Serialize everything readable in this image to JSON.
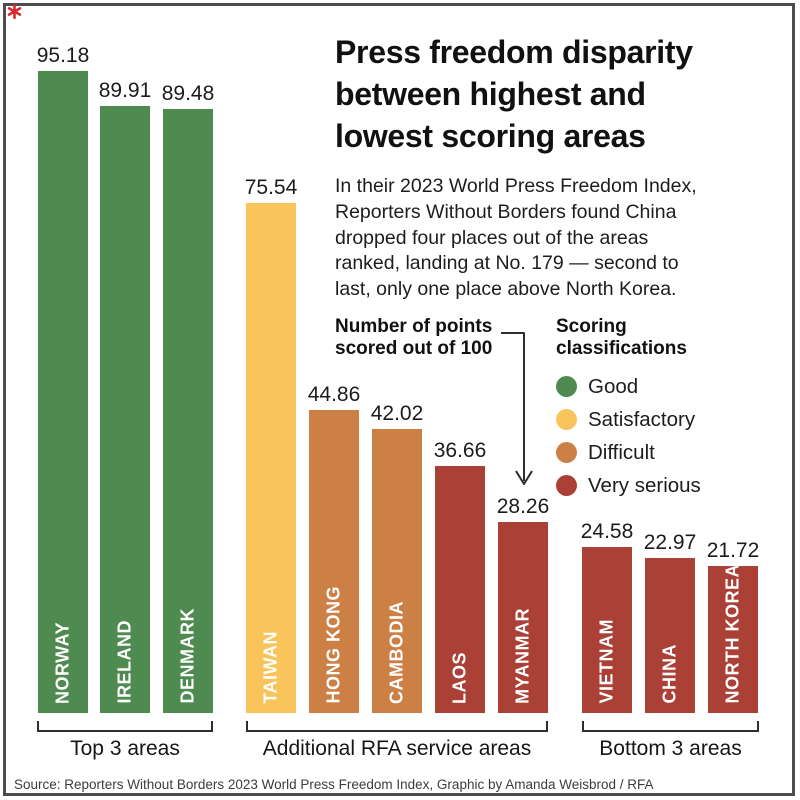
{
  "logo": {
    "color": "#d7282f"
  },
  "header": {
    "title_lines": [
      "Press freedom disparity",
      "between highest and",
      "lowest scoring areas"
    ]
  },
  "intro_lines": [
    "In their 2023 World Press Freedom Index,",
    "Reporters Without Borders found China",
    "dropped four places out of the areas",
    "ranked, landing at No. 179 — second to",
    "last, only one place above North Korea."
  ],
  "annotation": {
    "lines": [
      "Number of points",
      "scored out of 100"
    ]
  },
  "legend": {
    "title_lines": [
      "Scoring",
      "classifications"
    ],
    "items": [
      {
        "label": "Good",
        "color": "#4f8b51"
      },
      {
        "label": "Satisfactory",
        "color": "#f9c45c"
      },
      {
        "label": "Difficult",
        "color": "#cd8045"
      },
      {
        "label": "Very serious",
        "color": "#ab4136"
      }
    ]
  },
  "chart_data": {
    "type": "bar",
    "title": "Press freedom disparity between highest and lowest scoring areas",
    "ylabel": "Number of points scored out of 100",
    "ylim": [
      0,
      100
    ],
    "bars": [
      {
        "label": "NORWAY",
        "value": 95.18,
        "classification": "Good"
      },
      {
        "label": "IRELAND",
        "value": 89.91,
        "classification": "Good"
      },
      {
        "label": "DENMARK",
        "value": 89.48,
        "classification": "Good"
      },
      {
        "label": "TAIWAN",
        "value": 75.54,
        "classification": "Satisfactory"
      },
      {
        "label": "HONG KONG",
        "value": 44.86,
        "classification": "Difficult"
      },
      {
        "label": "CAMBODIA",
        "value": 42.02,
        "classification": "Difficult"
      },
      {
        "label": "LAOS",
        "value": 36.66,
        "classification": "Very serious"
      },
      {
        "label": "MYANMAR",
        "value": 28.26,
        "classification": "Very serious"
      },
      {
        "label": "VIETNAM",
        "value": 24.58,
        "classification": "Very serious"
      },
      {
        "label": "CHINA",
        "value": 22.97,
        "classification": "Very serious"
      },
      {
        "label": "NORTH KOREA",
        "value": 21.72,
        "classification": "Very serious"
      }
    ],
    "classification_colors": {
      "Good": "#4f8b51",
      "Satisfactory": "#f9c45c",
      "Difficult": "#cd8045",
      "Very serious": "#ab4136"
    },
    "groups": [
      {
        "label": "Top 3 areas",
        "bar_count": 3
      },
      {
        "label": "Additional RFA service areas",
        "bar_count": 5
      },
      {
        "label": "Bottom 3 areas",
        "bar_count": 3
      }
    ]
  },
  "source": "Source: Reporters Without Borders 2023 World Press Freedom Index, Graphic by Amanda Weisbrod / RFA"
}
